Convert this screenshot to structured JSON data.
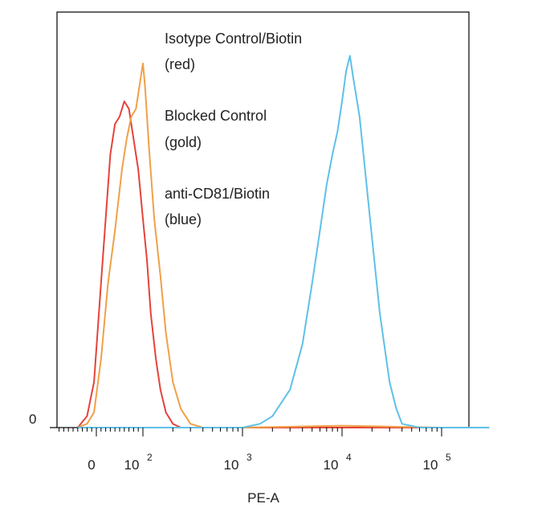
{
  "chart_data": {
    "type": "line",
    "xlabel": "PE-A",
    "ylabel": "",
    "x_scale": "biexponential",
    "xlim": [
      -40,
      300000
    ],
    "ylim": [
      0,
      100
    ],
    "y_ticks": [
      {
        "value": 0,
        "label": "0"
      }
    ],
    "x_ticks": [
      {
        "value": 0,
        "base": "0",
        "exp": ""
      },
      {
        "value": 100,
        "base": "10",
        "exp": "2"
      },
      {
        "value": 1000,
        "base": "10",
        "exp": "3"
      },
      {
        "value": 10000,
        "base": "10",
        "exp": "4"
      },
      {
        "value": 100000,
        "base": "10",
        "exp": "5"
      }
    ],
    "grid": false,
    "legend": "none",
    "annotations": [
      {
        "lines": [
          "Isotype Control/Biotin",
          "(red)"
        ]
      },
      {
        "lines": [
          "Blocked Control",
          "(gold)"
        ]
      },
      {
        "lines": [
          "anti-CD81/Biotin",
          "(blue)"
        ]
      }
    ],
    "series": [
      {
        "color": "#e4433c",
        "x": [
          -40,
          -20,
          -5,
          10,
          20,
          30,
          40,
          50,
          60,
          70,
          80,
          90,
          100,
          110,
          120,
          135,
          150,
          170,
          200,
          240,
          300,
          1000,
          10000,
          100000,
          300000
        ],
        "y": [
          0,
          3,
          12,
          38,
          55,
          72,
          80,
          82,
          86,
          84,
          76,
          68,
          55,
          44,
          30,
          18,
          10,
          4,
          1,
          0,
          0,
          0,
          0,
          0,
          0
        ]
      },
      {
        "color": "#f0a048",
        "x": [
          -40,
          -20,
          -5,
          10,
          25,
          40,
          55,
          65,
          75,
          85,
          95,
          100,
          105,
          115,
          130,
          150,
          170,
          200,
          240,
          300,
          400,
          1000,
          10000,
          100000,
          300000
        ],
        "y": [
          0,
          1,
          4,
          18,
          38,
          52,
          68,
          76,
          82,
          84,
          92,
          96,
          90,
          74,
          55,
          40,
          25,
          12,
          5,
          1,
          0,
          0,
          0.5,
          0,
          0
        ]
      },
      {
        "color": "#5fc0e8",
        "x": [
          -40,
          1000,
          1500,
          2000,
          3000,
          4000,
          5000,
          6000,
          7000,
          8000,
          9000,
          10000,
          11000,
          12000,
          13000,
          15000,
          17000,
          20000,
          24000,
          30000,
          35000,
          40000,
          60000,
          300000
        ],
        "y": [
          0,
          0,
          1,
          3,
          10,
          22,
          38,
          52,
          64,
          72,
          78,
          86,
          94,
          98,
          92,
          82,
          68,
          50,
          30,
          12,
          5,
          1,
          0,
          0
        ]
      }
    ]
  }
}
